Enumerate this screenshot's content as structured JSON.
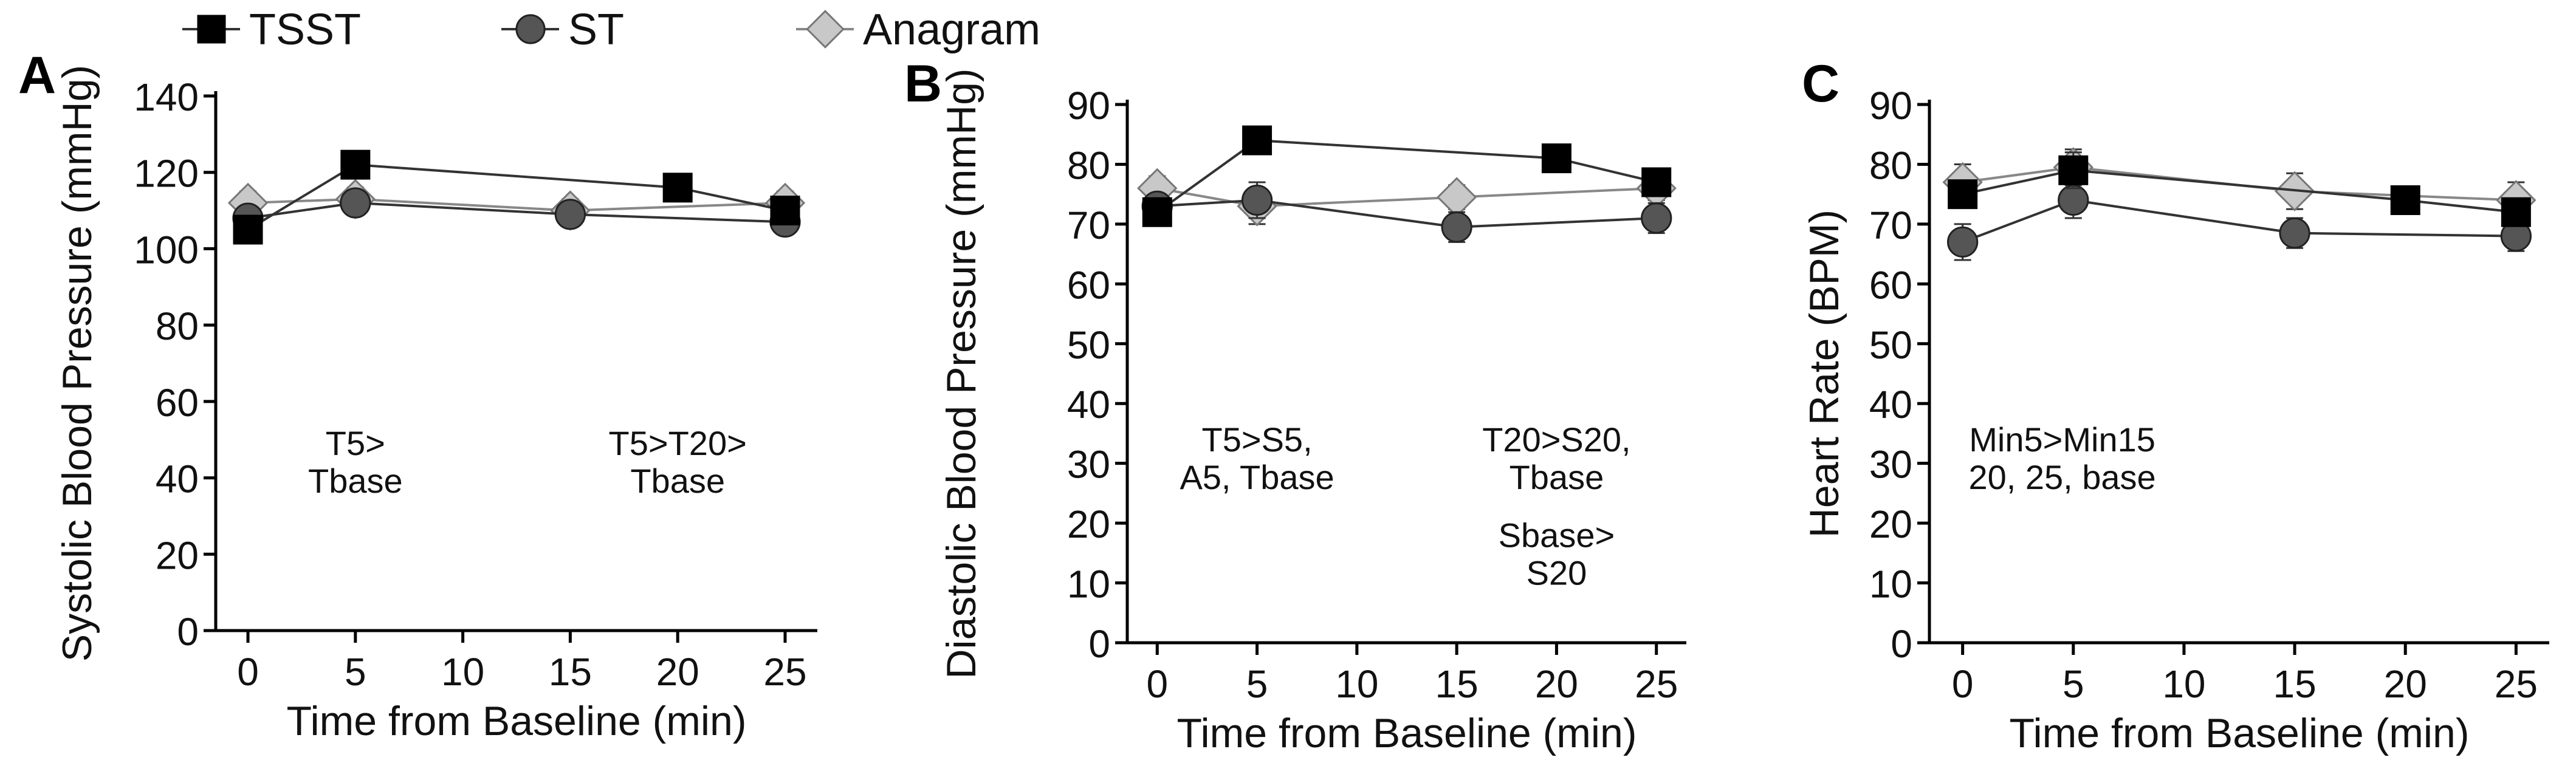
{
  "legend": {
    "placement": "top-center",
    "entries": [
      {
        "name": "TSST",
        "marker": "square",
        "color": "#000000",
        "line_color": "#333333"
      },
      {
        "name": "ST",
        "marker": "circle",
        "color": "#555555",
        "line_color": "#333333"
      },
      {
        "name": "Anagram",
        "marker": "diamond",
        "color": "#c8c8c8",
        "line_color": "#888888"
      }
    ]
  },
  "chart_data": [
    {
      "type": "line",
      "panel_label": "A",
      "xlabel": "Time from Baseline (min)",
      "ylabel": "Systolic Blood Pressure (mmHg)",
      "xlim": [
        -1.5,
        26.5
      ],
      "ylim": [
        0,
        140
      ],
      "xticks": [
        0,
        5,
        10,
        15,
        20,
        25
      ],
      "yticks": [
        0,
        20,
        40,
        60,
        80,
        100,
        120,
        140
      ],
      "series": [
        {
          "name": "TSST",
          "x": [
            0,
            5,
            20,
            25
          ],
          "values": [
            105,
            122,
            116,
            110
          ],
          "err": [
            2,
            3,
            3,
            3
          ]
        },
        {
          "name": "ST",
          "x": [
            0,
            5,
            15,
            25
          ],
          "values": [
            108,
            112,
            109,
            107
          ],
          "err": [
            3,
            3,
            3,
            3
          ]
        },
        {
          "name": "Anagram",
          "x": [
            0,
            5,
            15,
            25
          ],
          "values": [
            112,
            113,
            110,
            112
          ],
          "err": [
            3,
            3,
            3,
            3
          ]
        }
      ],
      "annotations": [
        {
          "lines": [
            "T5>",
            "Tbase"
          ],
          "x": 5,
          "y": 46
        },
        {
          "lines": [
            "T5>T20>",
            "Tbase"
          ],
          "x": 20,
          "y": 46
        }
      ]
    },
    {
      "type": "line",
      "panel_label": "B",
      "xlabel": "Time from Baseline (min)",
      "ylabel": "Diastolic Blood Pressure (mmHg)",
      "xlim": [
        -1.5,
        26.5
      ],
      "ylim": [
        0,
        90
      ],
      "xticks": [
        0,
        5,
        10,
        15,
        20,
        25
      ],
      "yticks": [
        0,
        10,
        20,
        30,
        40,
        50,
        60,
        70,
        80,
        90
      ],
      "series": [
        {
          "name": "TSST",
          "x": [
            0,
            5,
            20,
            25
          ],
          "values": [
            72,
            84,
            81,
            77
          ],
          "err": [
            2,
            2,
            2,
            2
          ]
        },
        {
          "name": "ST",
          "x": [
            0,
            5,
            15,
            25
          ],
          "values": [
            73,
            74,
            69.5,
            71
          ],
          "err": [
            2,
            3,
            2.5,
            2.5
          ]
        },
        {
          "name": "Anagram",
          "x": [
            0,
            5,
            15,
            25
          ],
          "values": [
            76,
            73,
            74.5,
            76
          ],
          "err": [
            2,
            3,
            2,
            2
          ]
        }
      ],
      "annotations": [
        {
          "lines": [
            "T5>S5,",
            "A5, Tbase"
          ],
          "x": 5,
          "y": 32
        },
        {
          "lines": [
            "T20>S20,",
            "Tbase"
          ],
          "x": 20,
          "y": 32
        },
        {
          "lines": [
            "Sbase>",
            "S20"
          ],
          "x": 20,
          "y": 16
        }
      ]
    },
    {
      "type": "line",
      "panel_label": "C",
      "xlabel": "Time from Baseline (min)",
      "ylabel": "Heart Rate (BPM)",
      "xlim": [
        -1.5,
        26.5
      ],
      "ylim": [
        0,
        90
      ],
      "xticks": [
        0,
        5,
        10,
        15,
        20,
        25
      ],
      "yticks": [
        0,
        10,
        20,
        30,
        40,
        50,
        60,
        70,
        80,
        90
      ],
      "series": [
        {
          "name": "TSST",
          "x": [
            0,
            5,
            20,
            25
          ],
          "values": [
            75,
            79,
            74,
            72
          ],
          "err": [
            2,
            3,
            2,
            2
          ]
        },
        {
          "name": "ST",
          "x": [
            0,
            5,
            15,
            25
          ],
          "values": [
            67,
            74,
            68.5,
            68
          ],
          "err": [
            3,
            3,
            2.5,
            2.5
          ]
        },
        {
          "name": "Anagram",
          "x": [
            0,
            5,
            15,
            25
          ],
          "values": [
            77,
            79.5,
            75.5,
            74
          ],
          "err": [
            3,
            3,
            3,
            3
          ]
        }
      ],
      "annotations": [
        {
          "lines": [
            "Min5>Min15",
            "20, 25, base"
          ],
          "x": 4.5,
          "y": 32
        }
      ]
    }
  ]
}
